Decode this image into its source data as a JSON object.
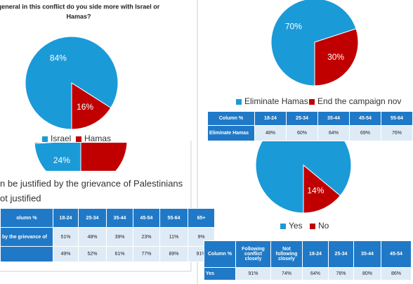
{
  "panels": [
    {
      "title": [
        "general in this conflict do you side more with Israel or",
        "Hamas?"
      ],
      "pie": {
        "slices": [
          {
            "name": "Israel",
            "value": 84,
            "label": "84%",
            "color": "#1b9ad8"
          },
          {
            "name": "Hamas",
            "value": 16,
            "label": "16%",
            "color": "#c00000"
          }
        ]
      }
    },
    {
      "pie": {
        "slices": [
          {
            "name": "Eliminate Hamas",
            "value": 70,
            "label": "70%",
            "color": "#1b9ad8"
          },
          {
            "name": "End the campaign nov",
            "value": 30,
            "label": "30%",
            "color": "#c00000"
          }
        ]
      },
      "table": {
        "header": [
          "Column %",
          "18-24",
          "25-34",
          "35-44",
          "45-54",
          "55-64"
        ],
        "rows": [
          [
            "Eliminate Hamas",
            "48%",
            "60%",
            "64%",
            "69%",
            "76%"
          ]
        ]
      }
    },
    {
      "pie": {
        "slices": [
          {
            "value": 24,
            "label": "24%",
            "color": "#1b9ad8"
          },
          {
            "value": 76,
            "color": "#c00000"
          }
        ]
      },
      "text": [
        "n be justified by the grievance of Palestinians",
        "ot justified"
      ],
      "table": {
        "header": [
          "olumn %",
          "18-24",
          "25-34",
          "35-44",
          "45-54",
          "55-64",
          "65+"
        ],
        "rows": [
          [
            "by the grievance of",
            "51%",
            "48%",
            "39%",
            "23%",
            "11%",
            "9%"
          ],
          [
            null,
            "49%",
            "52%",
            "61%",
            "77%",
            "89%",
            "91%"
          ]
        ]
      }
    },
    {
      "pie": {
        "slices": [
          {
            "name": "Yes",
            "value": 86,
            "color": "#1b9ad8"
          },
          {
            "name": "No",
            "value": 14,
            "label": "14%",
            "color": "#c00000"
          }
        ]
      },
      "table": {
        "header": [
          "Column %",
          "Following conflict closely",
          "Not following closely",
          "18-24",
          "25-34",
          "35-44",
          "45-54"
        ],
        "rows": [
          [
            "Yes",
            "91%",
            "74%",
            "64%",
            "76%",
            "80%",
            "86%"
          ]
        ]
      }
    }
  ]
}
